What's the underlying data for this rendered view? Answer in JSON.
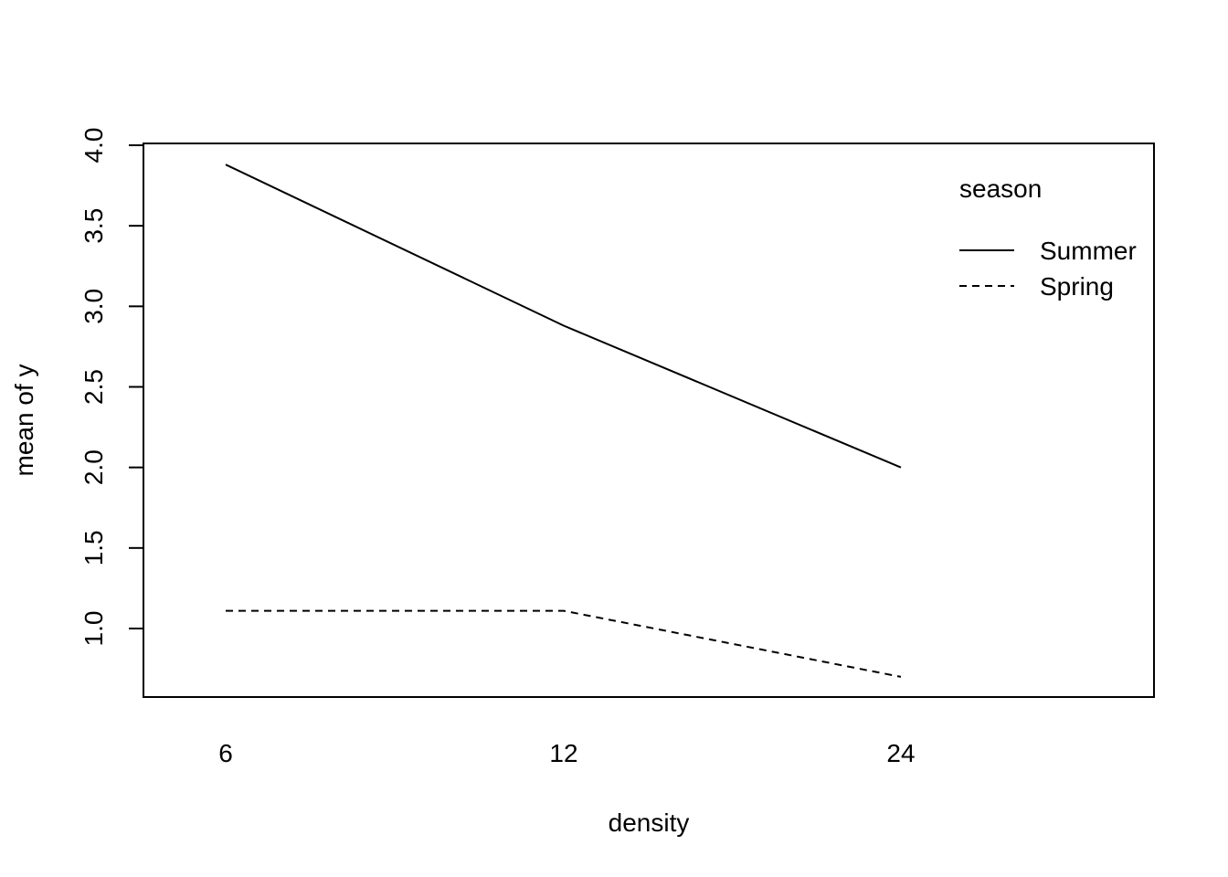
{
  "chart_data": {
    "type": "line",
    "categories": [
      "6",
      "12",
      "24"
    ],
    "series": [
      {
        "name": "Summer",
        "values": [
          3.88,
          2.88,
          2.0
        ],
        "line_style": "solid"
      },
      {
        "name": "Spring",
        "values": [
          1.11,
          1.11,
          0.7
        ],
        "line_style": "dashed"
      }
    ],
    "xlabel": "density",
    "ylabel": "mean of  y",
    "ylim": [
      0.57,
      4.0
    ],
    "yticks": [
      "1.0",
      "1.5",
      "2.0",
      "2.5",
      "3.0",
      "3.5",
      "4.0"
    ],
    "legend": {
      "title": "season",
      "position": "top-right"
    },
    "grid": false,
    "colors": {
      "line": "#000000",
      "background": "#ffffff"
    }
  }
}
